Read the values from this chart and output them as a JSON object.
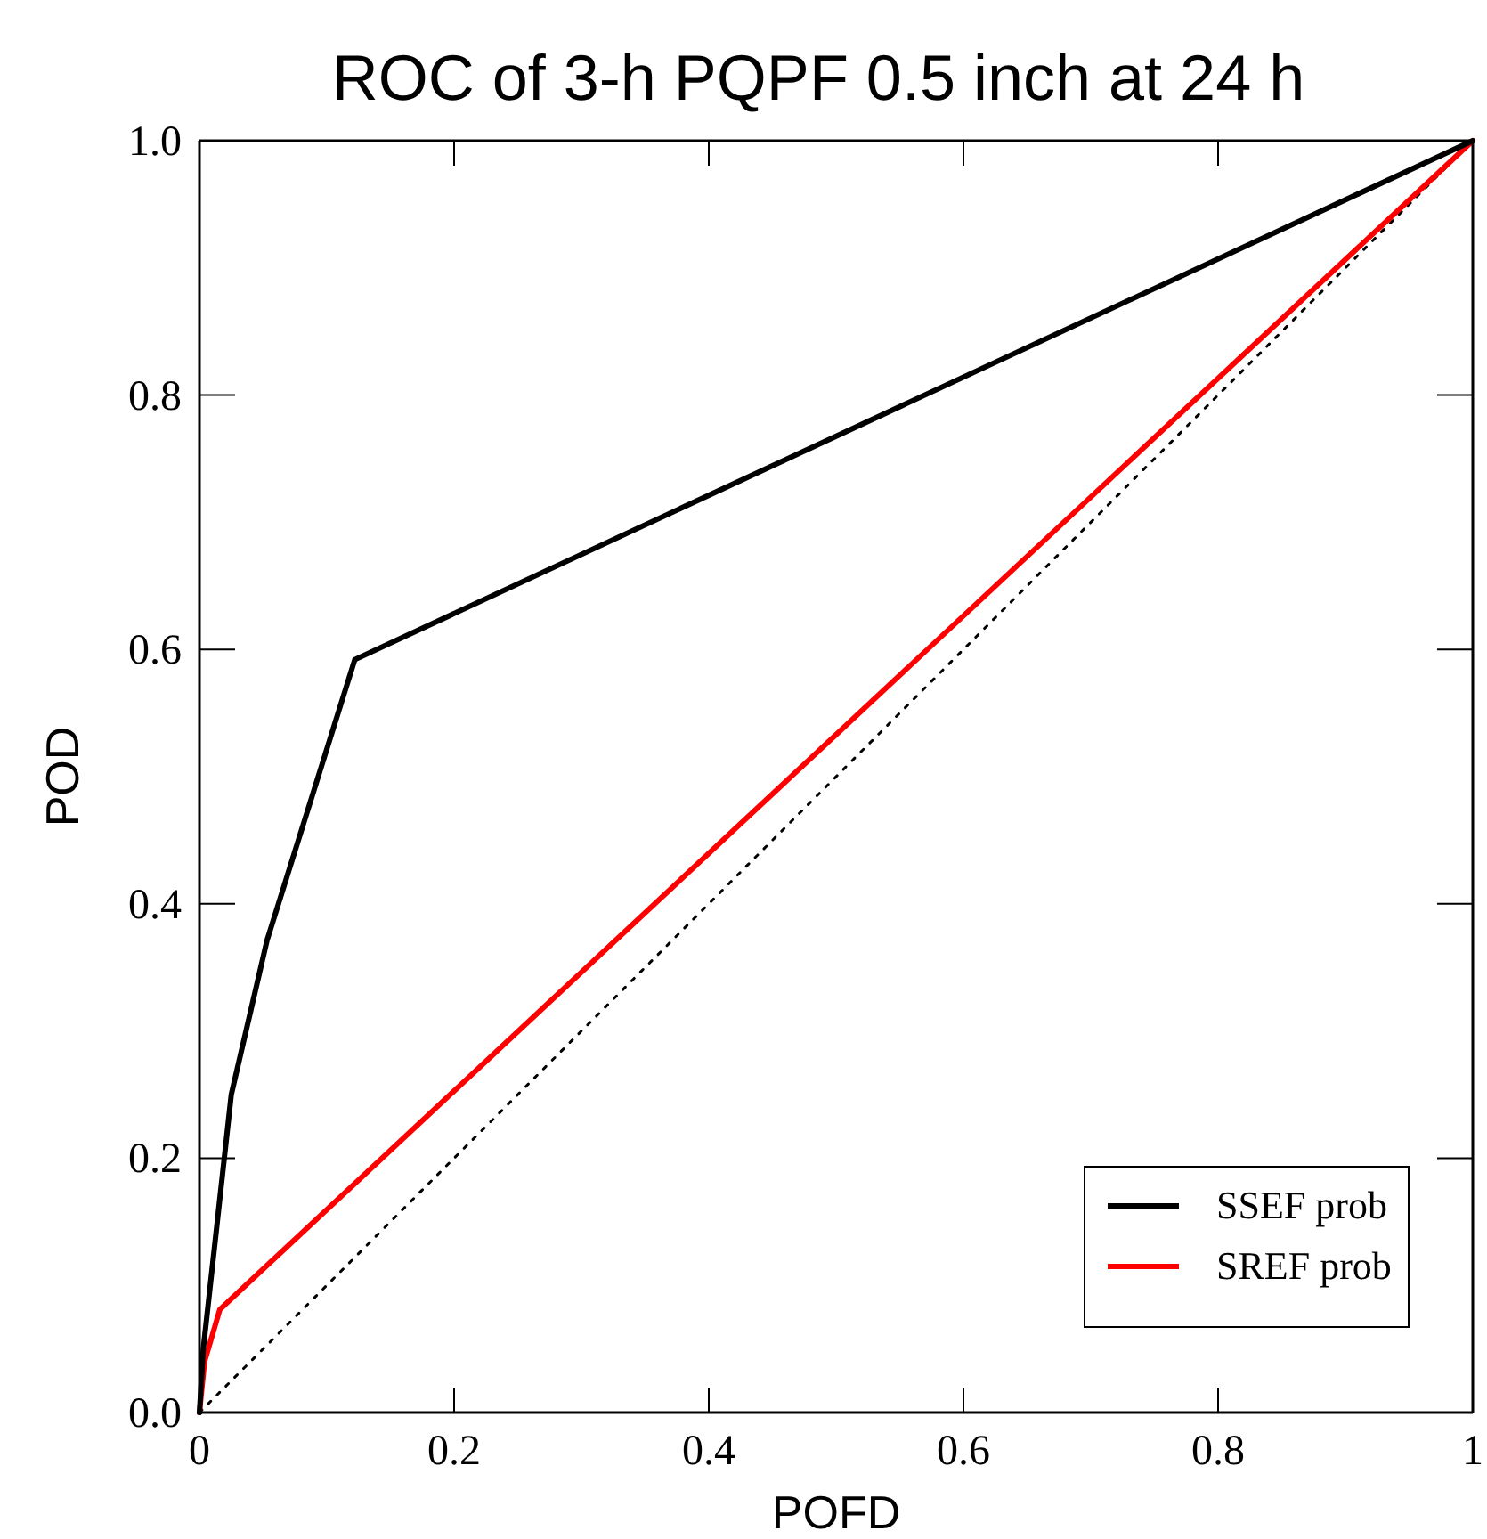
{
  "chart_data": {
    "type": "line",
    "title": "ROC of 3-h PQPF 0.5 inch at 24 h",
    "xlabel": "POFD",
    "ylabel": "POD",
    "xlim": [
      0,
      1
    ],
    "ylim": [
      0,
      1
    ],
    "xticks": [
      0,
      0.2,
      0.4,
      0.6,
      0.8,
      1
    ],
    "yticks": [
      {
        "value": 0,
        "label": "0.0"
      },
      0.2,
      0.4,
      0.6,
      0.8,
      {
        "value": 1,
        "label": "1.0"
      }
    ],
    "grid": false,
    "legend": "bottom right",
    "marker": "none",
    "series": [
      {
        "name": "SSEF prob",
        "color": "#000000",
        "x": [
          0,
          0.003,
          0.025,
          0.053,
          0.122,
          1
        ],
        "values": [
          0,
          0.05,
          0.25,
          0.371,
          0.592,
          1
        ]
      },
      {
        "name": "SREF prob",
        "color": "#ff0000",
        "x": [
          0,
          0.004,
          0.016,
          1
        ],
        "values": [
          0,
          0.04,
          0.081,
          1
        ]
      },
      {
        "color": "#000000",
        "line_style": "dotted",
        "x": [
          0,
          1
        ],
        "values": [
          0,
          1
        ]
      }
    ]
  }
}
